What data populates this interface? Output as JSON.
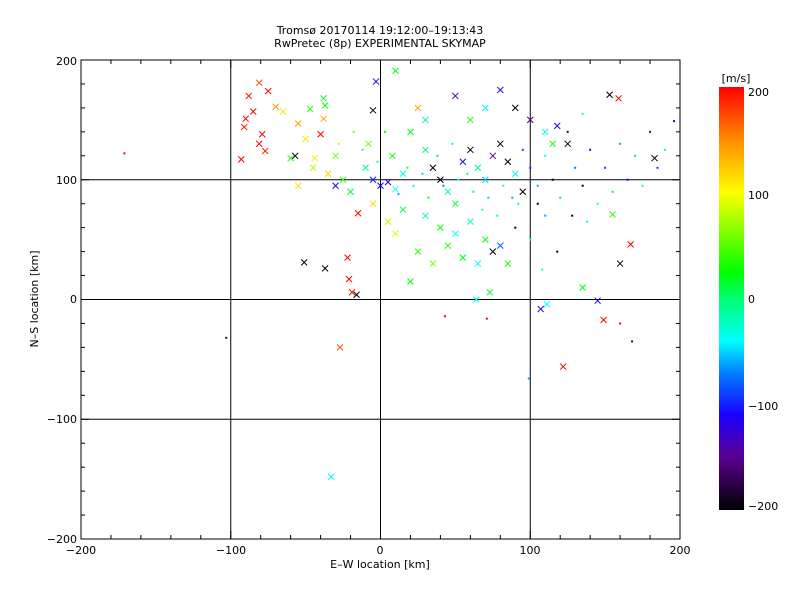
{
  "chart_data": {
    "type": "scatter",
    "title": "Tromsø 20170114 19:12:00–19:13:43",
    "subtitle": "RwPretec (8p) EXPERIMENTAL SKYMAP",
    "xlabel": "E–W location [km]",
    "ylabel": "N–S location [km]",
    "xlim": [
      -200,
      200
    ],
    "ylim": [
      -200,
      200
    ],
    "xticks": [
      "−200",
      "−100",
      "0",
      "100",
      "200"
    ],
    "yticks": [
      "−200",
      "−100",
      "0",
      "100",
      "200"
    ],
    "grid_lines": [
      -100,
      0,
      100
    ],
    "colorbar": {
      "label": "[m/s]",
      "range": [
        -200,
        200
      ],
      "ticks": [
        "200",
        "100",
        "0",
        "−100",
        "−200"
      ],
      "stops": [
        {
          "v": -200,
          "color": "#000000"
        },
        {
          "v": -150,
          "color": "#5a0090"
        },
        {
          "v": -110,
          "color": "#1a00ff"
        },
        {
          "v": -70,
          "color": "#0080ff"
        },
        {
          "v": -40,
          "color": "#00ffff"
        },
        {
          "v": 0,
          "color": "#00ff70"
        },
        {
          "v": 25,
          "color": "#00ff00"
        },
        {
          "v": 100,
          "color": "#ffff00"
        },
        {
          "v": 150,
          "color": "#ff8c00"
        },
        {
          "v": 200,
          "color": "#ff0000"
        }
      ]
    },
    "marker_legend": {
      "1": "cross",
      "0": "dot"
    },
    "points": [
      [
        -171,
        122,
        200,
        0
      ],
      [
        -103,
        -32,
        -170,
        0
      ],
      [
        -33,
        -148,
        -40,
        1
      ],
      [
        -27,
        -40,
        170,
        1
      ],
      [
        -88,
        170,
        200,
        1
      ],
      [
        -85,
        157,
        200,
        1
      ],
      [
        -90,
        151,
        200,
        1
      ],
      [
        -91,
        144,
        195,
        1
      ],
      [
        -93,
        117,
        200,
        1
      ],
      [
        -81,
        130,
        200,
        1
      ],
      [
        -77,
        124,
        190,
        1
      ],
      [
        -79,
        138,
        200,
        1
      ],
      [
        -81,
        181,
        170,
        1
      ],
      [
        -75,
        174,
        200,
        1
      ],
      [
        -70,
        161,
        150,
        1
      ],
      [
        -65,
        157,
        110,
        1
      ],
      [
        -55,
        147,
        140,
        1
      ],
      [
        -50,
        134,
        110,
        1
      ],
      [
        -57,
        120,
        -190,
        1
      ],
      [
        -60,
        118,
        30,
        1
      ],
      [
        -51,
        31,
        -200,
        1
      ],
      [
        -37,
        26,
        -200,
        1
      ],
      [
        -22,
        35,
        200,
        1
      ],
      [
        -21,
        17,
        200,
        1
      ],
      [
        -16,
        4,
        -200,
        1
      ],
      [
        -19,
        6,
        200,
        1
      ],
      [
        -38,
        168,
        20,
        1
      ],
      [
        -37,
        162,
        30,
        1
      ],
      [
        -38,
        151,
        140,
        1
      ],
      [
        -40,
        138,
        200,
        1
      ],
      [
        -47,
        159,
        40,
        1
      ],
      [
        -5,
        158,
        -200,
        1
      ],
      [
        -3,
        182,
        -120,
        1
      ],
      [
        10,
        191,
        20,
        1
      ],
      [
        153,
        171,
        -200,
        1
      ],
      [
        159,
        168,
        200,
        1
      ],
      [
        183,
        118,
        -200,
        1
      ],
      [
        196,
        149,
        -110,
        0
      ],
      [
        167,
        46,
        200,
        1
      ],
      [
        160,
        30,
        -200,
        1
      ],
      [
        155,
        71,
        40,
        1
      ],
      [
        149,
        -17,
        200,
        1
      ],
      [
        160,
        -20,
        200,
        0
      ],
      [
        168,
        -35,
        -170,
        0
      ],
      [
        122,
        -56,
        200,
        1
      ],
      [
        99,
        -66,
        -60,
        0
      ],
      [
        145,
        -1,
        -110,
        1
      ],
      [
        135,
        10,
        20,
        1
      ],
      [
        111,
        -4,
        -40,
        1
      ],
      [
        107,
        -8,
        -110,
        1
      ],
      [
        43,
        -14,
        200,
        0
      ],
      [
        71,
        -16,
        200,
        0
      ],
      [
        64,
        0,
        -30,
        1
      ],
      [
        73,
        6,
        20,
        1
      ],
      [
        -55,
        95,
        110,
        1
      ],
      [
        -45,
        110,
        80,
        1
      ],
      [
        -30,
        120,
        60,
        1
      ],
      [
        -25,
        100,
        40,
        1
      ],
      [
        -20,
        90,
        10,
        1
      ],
      [
        -15,
        72,
        200,
        1
      ],
      [
        -35,
        105,
        120,
        1
      ],
      [
        -10,
        110,
        -10,
        1
      ],
      [
        -5,
        100,
        -100,
        1
      ],
      [
        0,
        95,
        -110,
        1
      ],
      [
        5,
        98,
        -120,
        1
      ],
      [
        10,
        92,
        -40,
        1
      ],
      [
        15,
        105,
        -30,
        1
      ],
      [
        8,
        120,
        30,
        1
      ],
      [
        -8,
        130,
        60,
        1
      ],
      [
        20,
        140,
        20,
        1
      ],
      [
        25,
        160,
        140,
        1
      ],
      [
        30,
        125,
        0,
        1
      ],
      [
        35,
        110,
        -200,
        1
      ],
      [
        40,
        100,
        -200,
        1
      ],
      [
        45,
        90,
        -20,
        1
      ],
      [
        50,
        80,
        20,
        1
      ],
      [
        55,
        115,
        -130,
        1
      ],
      [
        60,
        125,
        -200,
        1
      ],
      [
        65,
        110,
        -10,
        1
      ],
      [
        70,
        100,
        -50,
        1
      ],
      [
        75,
        120,
        -150,
        1
      ],
      [
        80,
        130,
        -200,
        1
      ],
      [
        85,
        115,
        -200,
        1
      ],
      [
        90,
        105,
        -40,
        1
      ],
      [
        95,
        90,
        -200,
        1
      ],
      [
        100,
        110,
        -100,
        0
      ],
      [
        105,
        95,
        -60,
        0
      ],
      [
        110,
        120,
        -30,
        0
      ],
      [
        115,
        100,
        -200,
        0
      ],
      [
        120,
        85,
        -50,
        0
      ],
      [
        125,
        140,
        -180,
        0
      ],
      [
        130,
        110,
        -70,
        0
      ],
      [
        135,
        95,
        -200,
        0
      ],
      [
        140,
        125,
        -120,
        0
      ],
      [
        145,
        80,
        -40,
        0
      ],
      [
        150,
        110,
        -90,
        0
      ],
      [
        155,
        90,
        20,
        0
      ],
      [
        160,
        130,
        -60,
        0
      ],
      [
        165,
        100,
        -110,
        0
      ],
      [
        170,
        120,
        10,
        0
      ],
      [
        175,
        95,
        -30,
        0
      ],
      [
        180,
        140,
        -150,
        0
      ],
      [
        185,
        110,
        -90,
        0
      ],
      [
        190,
        125,
        -20,
        0
      ],
      [
        30,
        70,
        -10,
        1
      ],
      [
        40,
        60,
        30,
        1
      ],
      [
        50,
        55,
        -40,
        1
      ],
      [
        60,
        65,
        -20,
        1
      ],
      [
        70,
        50,
        20,
        1
      ],
      [
        80,
        45,
        -80,
        1
      ],
      [
        90,
        60,
        -200,
        0
      ],
      [
        100,
        50,
        -30,
        0
      ],
      [
        110,
        70,
        -60,
        0
      ],
      [
        55,
        35,
        20,
        1
      ],
      [
        65,
        30,
        -40,
        1
      ],
      [
        75,
        40,
        -200,
        1
      ],
      [
        85,
        30,
        30,
        1
      ],
      [
        45,
        45,
        40,
        1
      ],
      [
        35,
        30,
        60,
        1
      ],
      [
        20,
        15,
        30,
        1
      ],
      [
        25,
        40,
        40,
        1
      ],
      [
        15,
        75,
        10,
        1
      ],
      [
        5,
        65,
        80,
        1
      ],
      [
        -5,
        80,
        120,
        1
      ],
      [
        10,
        55,
        90,
        1
      ],
      [
        30,
        150,
        -20,
        1
      ],
      [
        50,
        170,
        -160,
        1
      ],
      [
        60,
        150,
        40,
        1
      ],
      [
        70,
        160,
        -40,
        1
      ],
      [
        80,
        175,
        -120,
        1
      ],
      [
        90,
        160,
        -200,
        1
      ],
      [
        100,
        150,
        -160,
        1
      ],
      [
        110,
        140,
        -40,
        1
      ],
      [
        118,
        145,
        -120,
        1
      ],
      [
        125,
        130,
        -200,
        1
      ],
      [
        135,
        155,
        -40,
        0
      ],
      [
        115,
        130,
        30,
        1
      ],
      [
        -12,
        125,
        -10,
        0
      ],
      [
        -2,
        115,
        -20,
        0
      ],
      [
        12,
        88,
        -60,
        0
      ],
      [
        22,
        95,
        -30,
        0
      ],
      [
        32,
        85,
        20,
        0
      ],
      [
        42,
        95,
        -70,
        0
      ],
      [
        52,
        100,
        -40,
        0
      ],
      [
        62,
        90,
        -10,
        0
      ],
      [
        72,
        85,
        -50,
        0
      ],
      [
        82,
        95,
        -30,
        0
      ],
      [
        92,
        80,
        -20,
        0
      ],
      [
        28,
        105,
        -50,
        0
      ],
      [
        38,
        120,
        10,
        0
      ],
      [
        48,
        130,
        -30,
        0
      ],
      [
        58,
        105,
        0,
        0
      ],
      [
        68,
        75,
        -40,
        0
      ],
      [
        78,
        70,
        -20,
        0
      ],
      [
        88,
        85,
        -60,
        0
      ],
      [
        18,
        110,
        40,
        0
      ],
      [
        -18,
        140,
        60,
        0
      ],
      [
        -28,
        130,
        80,
        0
      ],
      [
        3,
        140,
        20,
        0
      ],
      [
        95,
        125,
        -90,
        0
      ],
      [
        105,
        80,
        -200,
        0
      ],
      [
        128,
        70,
        -200,
        0
      ],
      [
        138,
        65,
        -30,
        0
      ],
      [
        118,
        40,
        -200,
        0
      ],
      [
        108,
        25,
        -40,
        0
      ],
      [
        -44,
        118,
        110,
        1
      ],
      [
        -30,
        95,
        -120,
        1
      ]
    ]
  }
}
